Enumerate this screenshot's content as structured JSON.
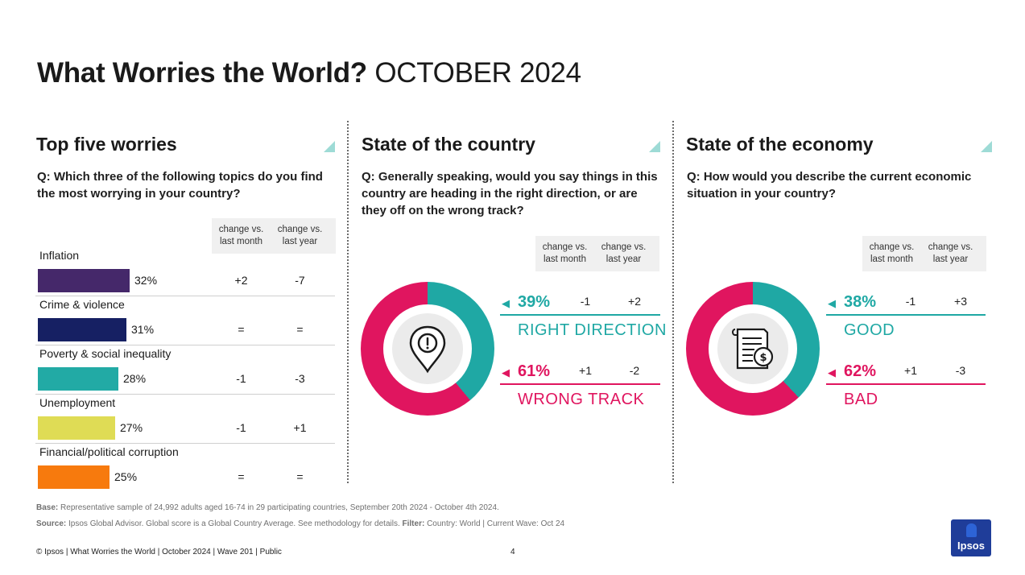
{
  "title": {
    "bold": "What Worries the World?",
    "light": "OCTOBER 2024"
  },
  "colors": {
    "teal": "#1fa8a4",
    "pink": "#e0155f",
    "tri": "#9edbd6"
  },
  "worries": {
    "title": "Top five worries",
    "question": "Q: Which three of the following topics do you find the most worrying in your country?",
    "col_month": "change vs. last month",
    "col_year": "change vs. last year",
    "items": [
      {
        "label": "Inflation",
        "pct": "32%",
        "value": 32,
        "vs_month": "+2",
        "vs_year": "-7",
        "color": "#45286a"
      },
      {
        "label": "Crime & violence",
        "pct": "31%",
        "value": 31,
        "vs_month": "=",
        "vs_year": "=",
        "color": "#162063"
      },
      {
        "label": "Poverty & social inequality",
        "pct": "28%",
        "value": 28,
        "vs_month": "-1",
        "vs_year": "-3",
        "color": "#22aaa5"
      },
      {
        "label": "Unemployment",
        "pct": "27%",
        "value": 27,
        "vs_month": "-1",
        "vs_year": "+1",
        "color": "#dfdc55"
      },
      {
        "label": "Financial/political corruption",
        "pct": "25%",
        "value": 25,
        "vs_month": "=",
        "vs_year": "=",
        "color": "#f77a0d"
      }
    ]
  },
  "country": {
    "title": "State of the country",
    "question": "Q: Generally speaking, would you say things in this country are heading in the right direction, or are they off on the wrong track?",
    "col_month": "change vs. last month",
    "col_year": "change vs. last year",
    "icon": "location-pin-alert-icon",
    "results": [
      {
        "pct": "39%",
        "value": 39,
        "vs_month": "-1",
        "vs_year": "+2",
        "label": "RIGHT DIRECTION"
      },
      {
        "pct": "61%",
        "value": 61,
        "vs_month": "+1",
        "vs_year": "-2",
        "label": "WRONG TRACK"
      }
    ]
  },
  "economy": {
    "title": "State of the economy",
    "question": "Q: How would you describe the current economic situation in your country?",
    "col_month": "change vs. last month",
    "col_year": "change vs. last year",
    "icon": "invoice-dollar-icon",
    "results": [
      {
        "pct": "38%",
        "value": 38,
        "vs_month": "-1",
        "vs_year": "+3",
        "label": "GOOD"
      },
      {
        "pct": "62%",
        "value": 62,
        "vs_month": "+1",
        "vs_year": "-3",
        "label": "BAD"
      }
    ]
  },
  "footer": {
    "base_label": "Base:",
    "base_text": "Representative sample of 24,992 adults aged 16-74 in 29 participating countries, September 20th 2024 - October 4th 2024.",
    "source_label": "Source:",
    "source_text": "Ipsos Global Advisor. Global score is a Global Country Average. See methodology for details.",
    "filter_label": "Filter:",
    "filter_text": "Country: World | Current Wave: Oct 24",
    "copyright": "© Ipsos | What Worries the World | October 2024 | Wave 201 | Public",
    "page": "4",
    "logo": "Ipsos"
  }
}
